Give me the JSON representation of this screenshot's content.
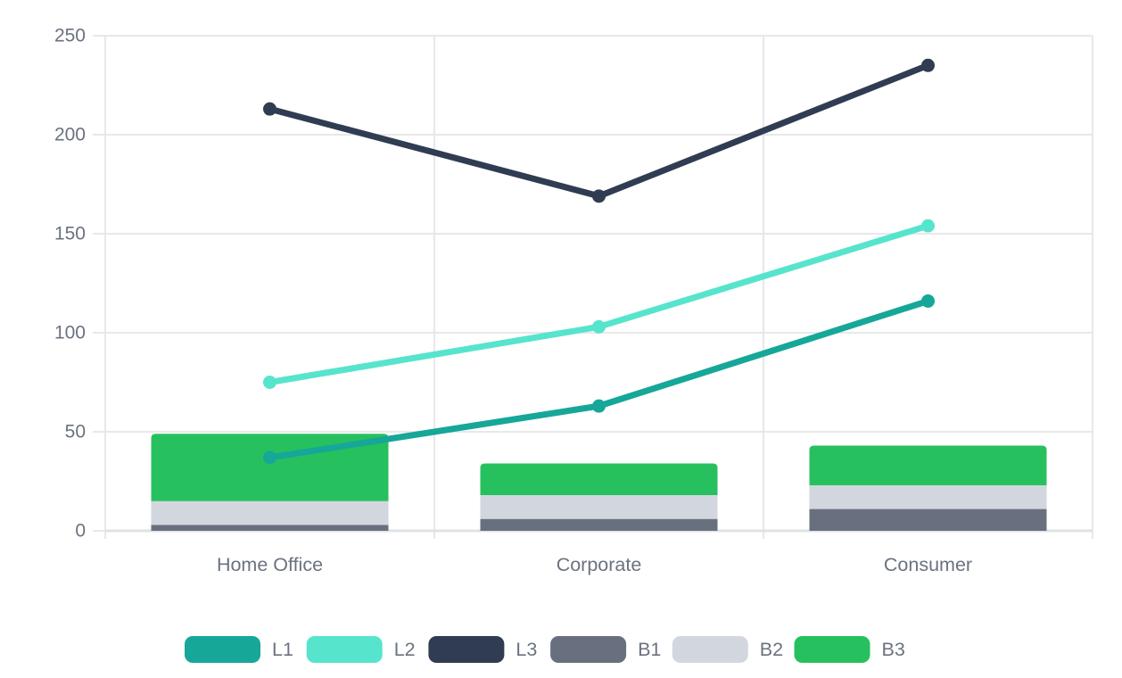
{
  "chart_data": {
    "type": "combo-bar-line",
    "title": "",
    "xlabel": "",
    "ylabel": "",
    "categories": [
      "Home Office",
      "Corporate",
      "Consumer"
    ],
    "bar_series": [
      {
        "name": "B1",
        "values": [
          3,
          6,
          11
        ],
        "color": "#68707f"
      },
      {
        "name": "B2",
        "values": [
          12,
          12,
          12
        ],
        "color": "#d2d6de"
      },
      {
        "name": "B3",
        "values": [
          34,
          16,
          20
        ],
        "color": "#26c15e"
      }
    ],
    "line_series": [
      {
        "name": "L1",
        "values": [
          37,
          63,
          116
        ],
        "color": "#16a799"
      },
      {
        "name": "L2",
        "values": [
          75,
          103,
          154
        ],
        "color": "#57e4cd"
      },
      {
        "name": "L3",
        "values": [
          213,
          169,
          235
        ],
        "color": "#303c52"
      }
    ],
    "y_ticks": [
      0,
      50,
      100,
      150,
      200,
      250
    ],
    "ylim": [
      0,
      250
    ],
    "grid": true,
    "stacked_bars": true,
    "legend_position": "bottom",
    "legend_order": [
      "L1",
      "L2",
      "L3",
      "B1",
      "B2",
      "B3"
    ]
  },
  "style": {
    "grid_color": "#e7e8ea",
    "axis_color": "#dfe2e6",
    "text_color": "#6b7280",
    "background": "#ffffff"
  }
}
